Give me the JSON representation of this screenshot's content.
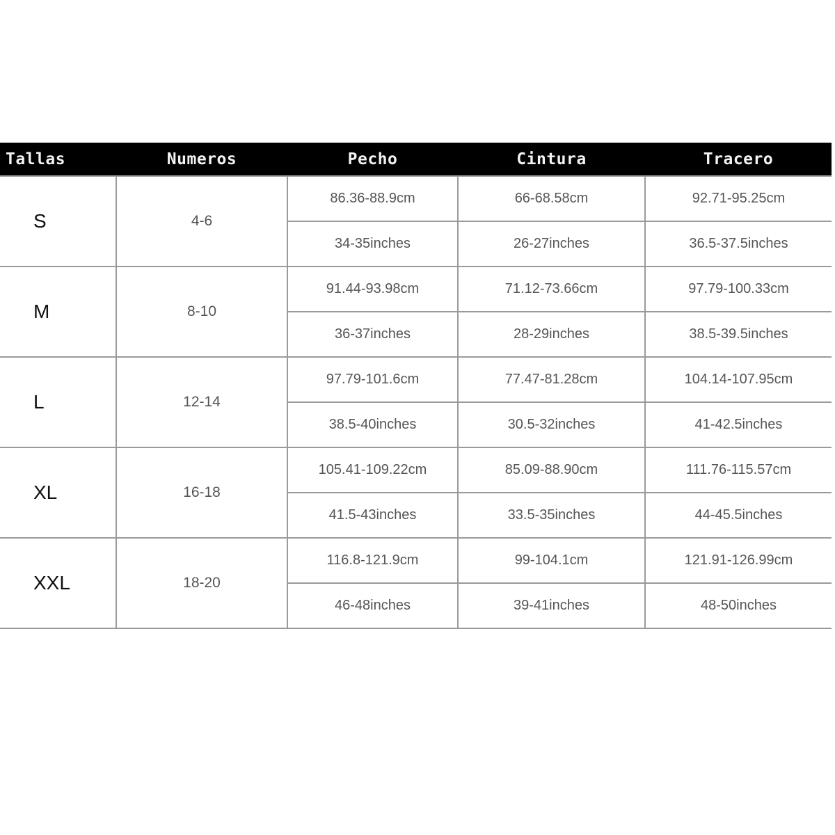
{
  "headers": [
    "Tallas",
    "Numeros",
    "Pecho",
    "Cintura",
    "Tracero"
  ],
  "rows": [
    {
      "talla": "S",
      "numero": "4-6",
      "pecho": [
        "86.36-88.9cm",
        "34-35inches"
      ],
      "cintura": [
        "66-68.58cm",
        "26-27inches"
      ],
      "tracero": [
        "92.71-95.25cm",
        "36.5-37.5inches"
      ]
    },
    {
      "talla": "M",
      "numero": "8-10",
      "pecho": [
        "91.44-93.98cm",
        "36-37inches"
      ],
      "cintura": [
        "71.12-73.66cm",
        "28-29inches"
      ],
      "tracero": [
        "97.79-100.33cm",
        "38.5-39.5inches"
      ]
    },
    {
      "talla": "L",
      "numero": "12-14",
      "pecho": [
        "97.79-101.6cm",
        "38.5-40inches"
      ],
      "cintura": [
        "77.47-81.28cm",
        "30.5-32inches"
      ],
      "tracero": [
        "104.14-107.95cm",
        "41-42.5inches"
      ]
    },
    {
      "talla": "XL",
      "numero": "16-18",
      "pecho": [
        "105.41-109.22cm",
        "41.5-43inches"
      ],
      "cintura": [
        "85.09-88.90cm",
        "33.5-35inches"
      ],
      "tracero": [
        "111.76-115.57cm",
        "44-45.5inches"
      ]
    },
    {
      "talla": "XXL",
      "numero": "18-20",
      "pecho": [
        "116.8-121.9cm",
        "46-48inches"
      ],
      "cintura": [
        "99-104.1cm",
        "39-41inches"
      ],
      "tracero": [
        "121.91-126.99cm",
        "48-50inches"
      ]
    }
  ]
}
